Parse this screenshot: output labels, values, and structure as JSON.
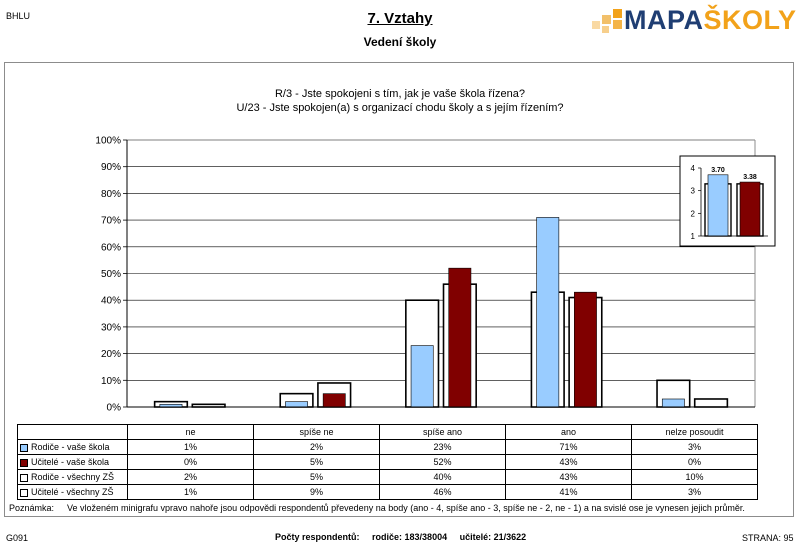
{
  "header": {
    "school_code": "BHLU",
    "title": "7. Vztahy",
    "subtitle": "Vedení školy",
    "logo_text_main": "MAPA",
    "logo_text_accent": "ŠKOLY",
    "logo_colors": {
      "main": "#1f3e73",
      "accent": "#f2a21a"
    }
  },
  "questions": {
    "q1": "R/3 - Jste spokojeni s tím, jak je vaše škola řízena?",
    "q2": "U/23 - Jste spokojen(a) s organizací chodu školy a s jejím řízením?"
  },
  "chart_data": [
    {
      "type": "bar",
      "categories": [
        "ne",
        "spíše ne",
        "spíše ano",
        "ano",
        "nelze posoudit"
      ],
      "series": [
        {
          "name": "Rodiče - vaše škola",
          "values": [
            1,
            2,
            23,
            71,
            3
          ],
          "labels": [
            "1%",
            "2%",
            "23%",
            "71%",
            "3%"
          ],
          "color": "#99ccff",
          "style": "filled"
        },
        {
          "name": "Učitelé - vaše škola",
          "values": [
            0,
            5,
            52,
            43,
            0
          ],
          "labels": [
            "0%",
            "5%",
            "52%",
            "43%",
            "0%"
          ],
          "color": "#800000",
          "style": "filled"
        },
        {
          "name": "Rodiče - všechny ZŠ",
          "values": [
            2,
            5,
            40,
            43,
            10
          ],
          "labels": [
            "2%",
            "5%",
            "40%",
            "43%",
            "10%"
          ],
          "color": "#ffffff",
          "style": "outline"
        },
        {
          "name": "Učitelé - všechny ZŠ",
          "values": [
            1,
            9,
            46,
            41,
            3
          ],
          "labels": [
            "1%",
            "9%",
            "46%",
            "41%",
            "3%"
          ],
          "color": "#ffffff",
          "style": "outline"
        }
      ],
      "y_ticks": [
        "0%",
        "10%",
        "20%",
        "30%",
        "40%",
        "50%",
        "60%",
        "70%",
        "80%",
        "90%",
        "100%"
      ],
      "ylim": [
        0,
        100
      ],
      "grid": true,
      "legend": "table below chart"
    },
    {
      "type": "bar",
      "series": [
        {
          "name": "Rodiče - vaše škola",
          "value": 3.7,
          "label": "3.70",
          "color": "#99ccff"
        },
        {
          "name": "Učitelé - vaše škola",
          "value": 3.38,
          "label": "3.38",
          "color": "#800000"
        }
      ],
      "outline_values": [
        3.3,
        3.3
      ],
      "y_ticks": [
        "1",
        "2",
        "3",
        "4"
      ],
      "ylim": [
        1,
        4
      ]
    }
  ],
  "note": {
    "label": "Poznámka:",
    "text": "Ve vloženém minigrafu vpravo nahoře jsou odpovědi respondentů převedeny na body (ano - 4, spíše ano - 3, spíše ne - 2, ne - 1) a na svislé ose je vynesen jejich průměr."
  },
  "footer": {
    "left": "G091",
    "respondents_label": "Počty respondentů:",
    "parents": "rodiče: 183/38004",
    "teachers": "učitelé: 21/3622",
    "page": "STRANA: 95"
  }
}
